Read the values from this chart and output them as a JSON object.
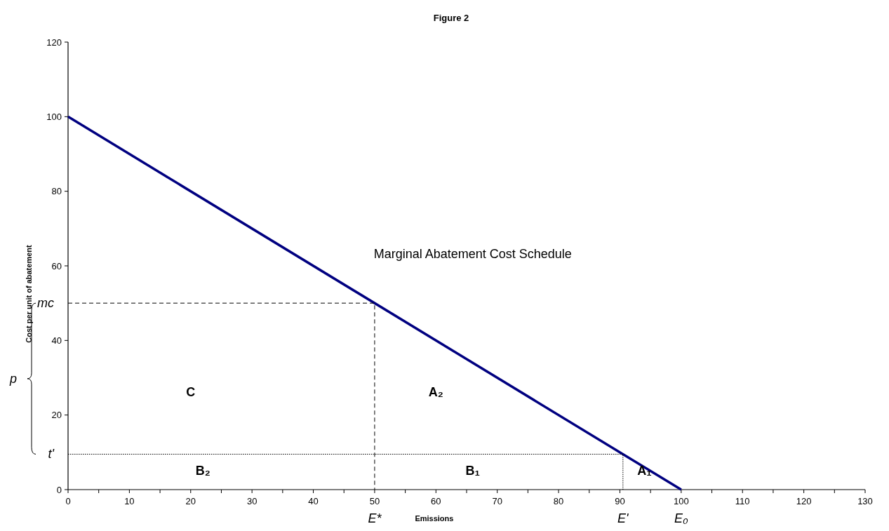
{
  "chart_data": {
    "type": "line",
    "title": "Figure 2",
    "xlabel": "Emissions",
    "ylabel": "Cost per unit of abatement",
    "xlim": [
      0,
      130
    ],
    "ylim": [
      0,
      120
    ],
    "xticks": [
      0,
      {
        "value": 5,
        "label": null
      },
      10,
      {
        "value": 15,
        "label": null
      },
      20,
      {
        "value": 25,
        "label": null
      },
      30,
      {
        "value": 35,
        "label": null
      },
      40,
      {
        "value": 45,
        "label": null
      },
      50,
      {
        "value": 55,
        "label": null
      },
      60,
      {
        "value": 65,
        "label": null
      },
      70,
      {
        "value": 75,
        "label": null
      },
      80,
      {
        "value": 85,
        "label": null
      },
      90,
      {
        "value": 95,
        "label": null
      },
      100,
      {
        "value": 105,
        "label": null
      },
      110,
      {
        "value": 115,
        "label": null
      },
      120,
      {
        "value": 125,
        "label": null
      },
      130
    ],
    "yticks": [
      0,
      20,
      40,
      60,
      80,
      100,
      120
    ],
    "grid": false,
    "marker": "none",
    "series": [
      {
        "color": "#000080",
        "x": [
          0,
          100
        ],
        "values": [
          100,
          0
        ],
        "line_style": "solid"
      },
      {
        "color": "#000000",
        "x": [
          0,
          50,
          50
        ],
        "values": [
          50,
          50,
          0
        ],
        "line_style": "dashed"
      },
      {
        "color": "#000000",
        "x": [
          0,
          90.5,
          90.5
        ],
        "values": [
          9.5,
          9.5,
          0
        ],
        "line_style": "dotted"
      }
    ],
    "annotations": [
      "Marginal Abatement Cost Schedule",
      "C",
      "A₂",
      "B₂",
      "B₁",
      "A₁",
      "mc",
      "p",
      "t'",
      "E*",
      "E'",
      "E₀"
    ]
  }
}
